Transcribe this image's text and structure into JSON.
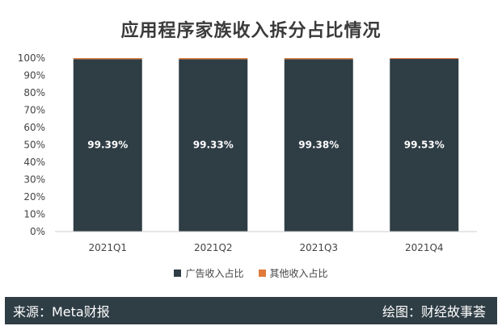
{
  "colors": {
    "ad": "#2f3d45",
    "other": "#e07b39",
    "footer_bg": "#2f3d45"
  },
  "chart_data": {
    "type": "bar",
    "stacked": true,
    "title": "应用程序家族收入拆分占比情况",
    "categories": [
      "2021Q1",
      "2021Q2",
      "2021Q3",
      "2021Q4"
    ],
    "series": [
      {
        "name": "广告收入占比",
        "values": [
          99.39,
          99.33,
          99.38,
          99.53
        ]
      },
      {
        "name": "其他收入占比",
        "values": [
          0.61,
          0.67,
          0.62,
          0.47
        ]
      }
    ],
    "data_labels": [
      "99.39%",
      "99.33%",
      "99.38%",
      "99.53%"
    ],
    "ylim": [
      0,
      100
    ],
    "yticks": [
      "0%",
      "10%",
      "20%",
      "30%",
      "40%",
      "50%",
      "60%",
      "70%",
      "80%",
      "90%",
      "100%"
    ],
    "legend_position": "bottom",
    "grid": false
  },
  "footer": {
    "source": "来源：Meta财报",
    "credit": "绘图：财经故事荟"
  }
}
